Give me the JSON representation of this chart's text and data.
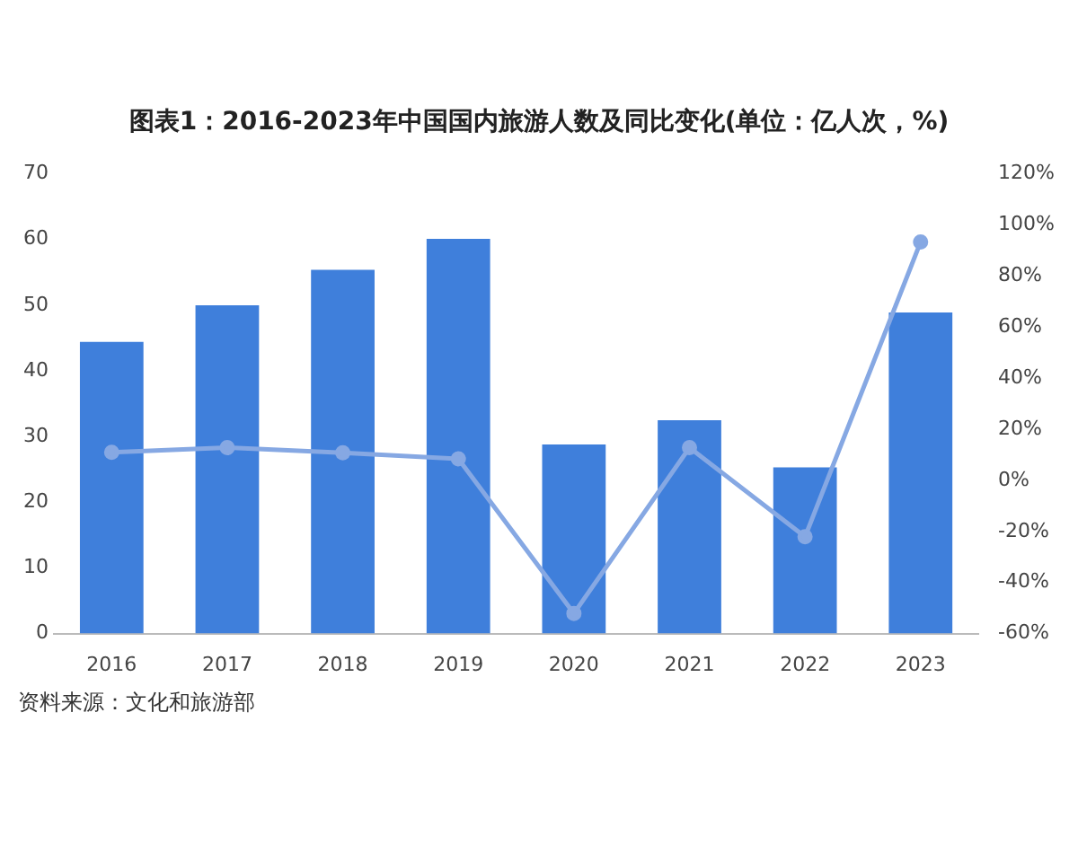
{
  "chart_data": {
    "type": "bar",
    "title": "图表1：2016-2023年中国国内旅游人数及同比变化(单位：亿人次，%)",
    "categories": [
      "2016",
      "2017",
      "2018",
      "2019",
      "2020",
      "2021",
      "2022",
      "2023"
    ],
    "series": [
      {
        "color": "#3f7fdb",
        "values": [
          44.4,
          50.0,
          55.4,
          60.1,
          28.8,
          32.5,
          25.3,
          48.9
        ]
      },
      {
        "type": "line",
        "axis": "y2",
        "color": "#86a8e3",
        "values": [
          11.0,
          12.8,
          10.8,
          8.4,
          -52.1,
          12.8,
          -22.1,
          93.3
        ]
      }
    ],
    "ylim": [
      0,
      70
    ],
    "yticks": [
      0,
      10,
      20,
      30,
      40,
      50,
      60,
      70
    ],
    "y2lim": [
      -60,
      120
    ],
    "y2ticks": [
      {
        "value": -60,
        "label": "-60%"
      },
      {
        "value": -40,
        "label": "-40%"
      },
      {
        "value": -20,
        "label": "-20%"
      },
      {
        "value": 0,
        "label": "0%"
      },
      {
        "value": 20,
        "label": "20%"
      },
      {
        "value": 40,
        "label": "40%"
      },
      {
        "value": 60,
        "label": "60%"
      },
      {
        "value": 80,
        "label": "80%"
      },
      {
        "value": 100,
        "label": "100%"
      },
      {
        "value": 120,
        "label": "120%"
      }
    ],
    "grid": false,
    "legend": false,
    "marker": "circle",
    "line_style": "solid",
    "annotations": [
      "资料来源：文化和旅游部"
    ]
  }
}
